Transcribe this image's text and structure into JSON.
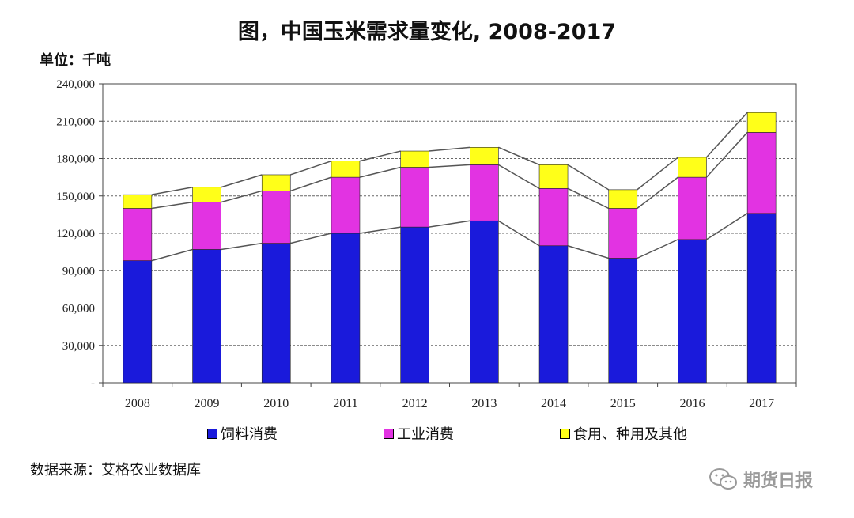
{
  "chart_data": {
    "type": "bar",
    "stacked": true,
    "title": "图，中国玉米需求量变化, 2008-2017",
    "unit_label": "单位：千吨",
    "categories": [
      "2008",
      "2009",
      "2010",
      "2011",
      "2012",
      "2013",
      "2014",
      "2015",
      "2016",
      "2017"
    ],
    "series": [
      {
        "name": "饲料消费",
        "color": "#1a1adb",
        "values": [
          98000,
          107000,
          112000,
          120000,
          125000,
          130000,
          110000,
          100000,
          115000,
          136000
        ]
      },
      {
        "name": "工业消费",
        "color": "#e233e2",
        "values": [
          42000,
          38000,
          42000,
          45000,
          48000,
          45000,
          46000,
          40000,
          50000,
          65000
        ]
      },
      {
        "name": "食用、种用及其他",
        "color": "#ffff19",
        "values": [
          11000,
          12000,
          13000,
          13000,
          13000,
          14000,
          19000,
          15000,
          16000,
          16000
        ]
      }
    ],
    "ylim": [
      0,
      240000
    ],
    "yticks": [
      0,
      30000,
      60000,
      90000,
      120000,
      150000,
      180000,
      210000,
      240000
    ],
    "ytick_labels": [
      "-",
      "30,000",
      "60,000",
      "90,000",
      "120,000",
      "150,000",
      "180,000",
      "210,000",
      "240,000"
    ],
    "grid": true,
    "connector_lines": true,
    "legend_position": "bottom"
  },
  "source_note": "数据来源：艾格农业数据库",
  "watermark": "期货日报"
}
